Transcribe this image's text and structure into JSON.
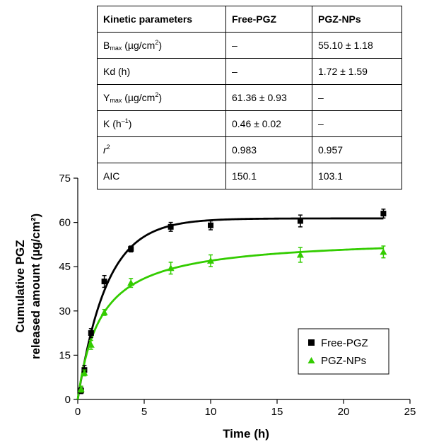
{
  "table": {
    "headers": [
      "Kinetic parameters",
      "Free-PGZ",
      "PGZ-NPs"
    ],
    "rows": [
      {
        "param": {
          "main": "B",
          "sub": "max",
          "rest": " (µg/cm",
          "sup": "2",
          "end": ")"
        },
        "free": "–",
        "nps": "55.10 ± 1.18"
      },
      {
        "param": {
          "main": "Kd (h)",
          "sub": "",
          "rest": "",
          "sup": "",
          "end": ""
        },
        "free": "–",
        "nps": "1.72 ± 1.59"
      },
      {
        "param": {
          "main": "Y",
          "sub": "max",
          "rest": " (µg/cm",
          "sup": "2",
          "end": ")"
        },
        "free": "61.36 ± 0.93",
        "nps": "–"
      },
      {
        "param": {
          "main": "K (h",
          "sub": "",
          "rest": "",
          "sup": "–1",
          "end": ")"
        },
        "free": "0.46 ± 0.02",
        "nps": "–"
      },
      {
        "param": {
          "main": "r",
          "sub": "",
          "rest": "",
          "sup": "2",
          "end": "",
          "italic": true
        },
        "free": "0.983",
        "nps": "0.957"
      },
      {
        "param": {
          "main": "AIC",
          "sub": "",
          "rest": "",
          "sup": "",
          "end": ""
        },
        "free": "150.1",
        "nps": "103.1"
      }
    ]
  },
  "chart_data": {
    "type": "scatter",
    "xlabel": "Time (h)",
    "ylabel_line1": "Cumulative PGZ",
    "ylabel_line2": "released amount (µg/cm²)",
    "xlim": [
      0,
      25
    ],
    "ylim": [
      0,
      75
    ],
    "xticks": [
      0,
      5,
      10,
      15,
      20,
      25
    ],
    "yticks": [
      0,
      15,
      30,
      45,
      60,
      75
    ],
    "grid": false,
    "legend_position": "lower-right",
    "series": [
      {
        "name": "Free-PGZ",
        "marker": "square",
        "color": "#000000",
        "points": [
          {
            "x": 0.25,
            "y": 3.0,
            "err": 1.0
          },
          {
            "x": 0.5,
            "y": 10.0,
            "err": 1.5
          },
          {
            "x": 1.0,
            "y": 22.5,
            "err": 1.5
          },
          {
            "x": 2.0,
            "y": 40.0,
            "err": 2.0
          },
          {
            "x": 4.0,
            "y": 51.0,
            "err": 1.0
          },
          {
            "x": 7.0,
            "y": 58.5,
            "err": 1.5
          },
          {
            "x": 10.0,
            "y": 59.0,
            "err": 1.5
          },
          {
            "x": 16.75,
            "y": 60.5,
            "err": 2.0
          },
          {
            "x": 23.0,
            "y": 63.0,
            "err": 1.5
          }
        ],
        "fit": {
          "model": "first-order",
          "ymax": 61.36,
          "k": 0.46
        }
      },
      {
        "name": "PGZ-NPs",
        "marker": "triangle",
        "color": "#33cc00",
        "points": [
          {
            "x": 0.25,
            "y": 3.5,
            "err": 1.0
          },
          {
            "x": 0.5,
            "y": 9.0,
            "err": 1.0
          },
          {
            "x": 1.0,
            "y": 18.5,
            "err": 1.5
          },
          {
            "x": 2.0,
            "y": 29.5,
            "err": 1.0
          },
          {
            "x": 4.0,
            "y": 39.5,
            "err": 1.5
          },
          {
            "x": 7.0,
            "y": 44.5,
            "err": 2.0
          },
          {
            "x": 10.0,
            "y": 47.0,
            "err": 2.0
          },
          {
            "x": 16.75,
            "y": 49.0,
            "err": 2.5
          },
          {
            "x": 23.0,
            "y": 50.0,
            "err": 2.0
          }
        ],
        "fit": {
          "model": "hyperbolic",
          "bmax": 55.1,
          "kd": 1.72
        }
      }
    ]
  }
}
